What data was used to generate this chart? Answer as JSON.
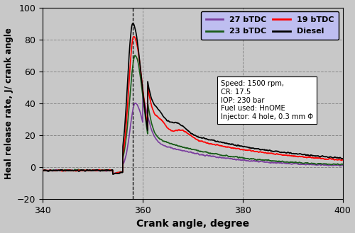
{
  "xlabel": "Crank angle, degree",
  "ylabel": "Heal release rate, J/ crank angle",
  "xlim": [
    340,
    400
  ],
  "ylim": [
    -20,
    100
  ],
  "xticks": [
    340,
    360,
    380,
    400
  ],
  "yticks": [
    -20,
    0,
    20,
    40,
    60,
    80,
    100
  ],
  "vline_x": 358,
  "annotation_text": "Speed: 1500 rpm,\nCR: 17.5\nIOP: 230 bar\nFuel used: HnOME\nInjector: 4 hole, 0.3 mm Φ",
  "legend_labels": [
    "27 bTDC",
    "23 bTDC",
    "19 bTDC",
    "Diesel"
  ],
  "line_colors": [
    "#7B3F9E",
    "#1A5C1A",
    "#FF0000",
    "#000000"
  ],
  "bg_color": "#C8C8C8",
  "legend_bg": "#BEBEF0"
}
